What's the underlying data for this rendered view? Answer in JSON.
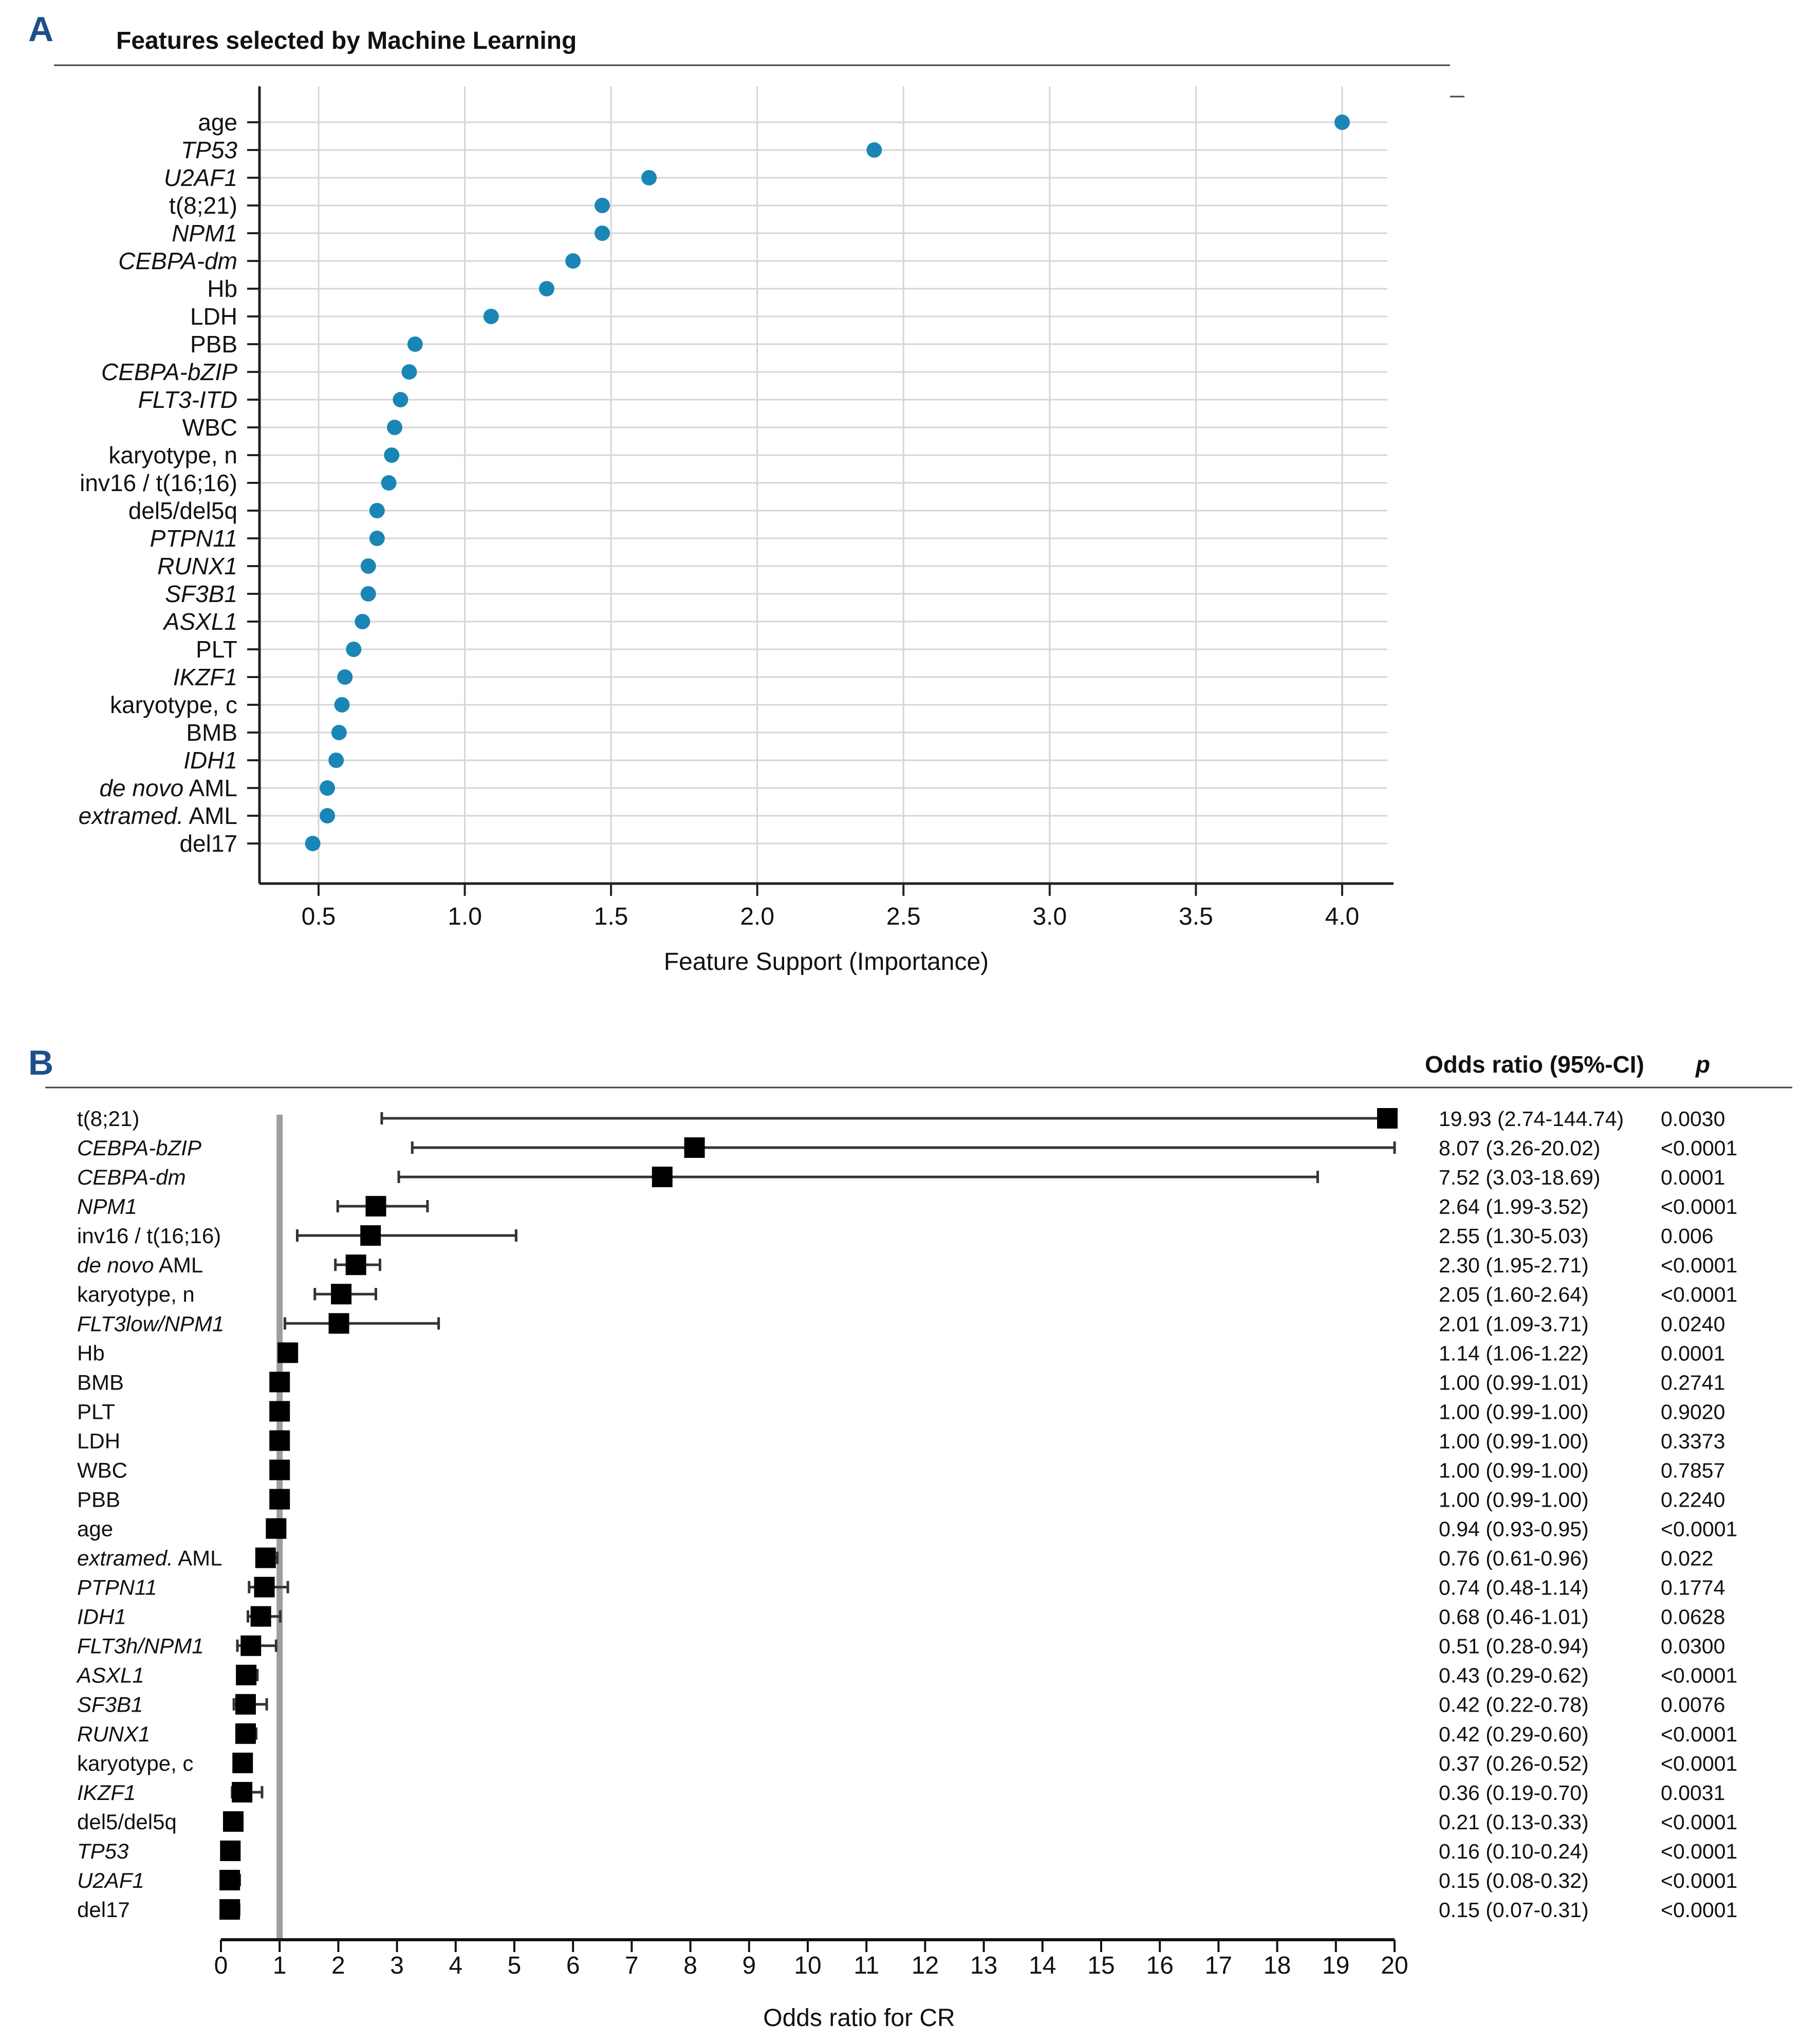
{
  "panels": {
    "a": {
      "letter": "A",
      "title": "Features selected by Machine Learning"
    },
    "b": {
      "letter": "B",
      "header_or": "Odds ratio (95%-CI)",
      "header_p": "p"
    }
  },
  "chart_data": [
    {
      "type": "scatter",
      "title": "Features selected by Machine Learning",
      "xlabel": "Feature Support (Importance)",
      "ylabel": "",
      "xlim": [
        0.2,
        4.18
      ],
      "xticks": [
        0.5,
        1.0,
        1.5,
        2.0,
        2.5,
        3.0,
        3.5,
        4.0
      ],
      "xtick_labels": [
        "0.5",
        "1.0",
        "1.5",
        "2.0",
        "2.5",
        "3.0",
        "3.5",
        "4.0"
      ],
      "grid": true,
      "point_color": "#1a86b6",
      "features": [
        {
          "label": "age",
          "value": 4.0,
          "italic": false
        },
        {
          "label": "TP53",
          "value": 2.4,
          "italic": true
        },
        {
          "label": "U2AF1",
          "value": 1.63,
          "italic": true
        },
        {
          "label": "t(8;21)",
          "value": 1.47,
          "italic": false
        },
        {
          "label": "NPM1",
          "value": 1.47,
          "italic": true
        },
        {
          "label": "CEBPA-dm",
          "value": 1.37,
          "italic": true
        },
        {
          "label": "Hb",
          "value": 1.28,
          "italic": false
        },
        {
          "label": "LDH",
          "value": 1.09,
          "italic": false
        },
        {
          "label": "PBB",
          "value": 0.83,
          "italic": false
        },
        {
          "label": "CEBPA-bZIP",
          "value": 0.81,
          "italic": true
        },
        {
          "label": "FLT3-ITD",
          "value": 0.78,
          "italic": true
        },
        {
          "label": "WBC",
          "value": 0.76,
          "italic": false
        },
        {
          "label": "karyotype, n",
          "value": 0.75,
          "italic": false
        },
        {
          "label": "inv16 / t(16;16)",
          "value": 0.74,
          "italic": false
        },
        {
          "label": "del5/del5q",
          "value": 0.7,
          "italic": false
        },
        {
          "label": "PTPN11",
          "value": 0.7,
          "italic": true
        },
        {
          "label": "RUNX1",
          "value": 0.67,
          "italic": true
        },
        {
          "label": "SF3B1",
          "value": 0.67,
          "italic": true
        },
        {
          "label": "ASXL1",
          "value": 0.65,
          "italic": true
        },
        {
          "label": "PLT",
          "value": 0.62,
          "italic": false
        },
        {
          "label": "IKZF1",
          "value": 0.59,
          "italic": true
        },
        {
          "label": "karyotype, c",
          "value": 0.58,
          "italic": false
        },
        {
          "label": "BMB",
          "value": 0.57,
          "italic": false
        },
        {
          "label": "IDH1",
          "value": 0.56,
          "italic": true
        },
        {
          "label": "de novo AML",
          "value": 0.53,
          "italic": false,
          "italic_part": "de novo",
          "plain_part": " AML"
        },
        {
          "label": "extramed. AML",
          "value": 0.53,
          "italic": false,
          "italic_part": "extramed.",
          "plain_part": " AML"
        },
        {
          "label": "del17",
          "value": 0.48,
          "italic": false
        }
      ]
    },
    {
      "type": "forest",
      "title": "",
      "xlabel": "Odds ratio for CR",
      "xlim": [
        0,
        20
      ],
      "reference_line": 1,
      "xticks": [
        0,
        1,
        2,
        3,
        4,
        5,
        6,
        7,
        8,
        9,
        10,
        11,
        12,
        13,
        14,
        15,
        16,
        17,
        18,
        19,
        20
      ],
      "xtick_labels": [
        "0",
        "1",
        "2",
        "3",
        "4",
        "5",
        "6",
        "7",
        "8",
        "9",
        "10",
        "11",
        "12",
        "13",
        "14",
        "15",
        "16",
        "17",
        "18",
        "19",
        "20"
      ],
      "table_headers": {
        "or": "Odds ratio (95%-CI)",
        "p": "p"
      },
      "rows": [
        {
          "label": "t(8;21)",
          "or": 19.93,
          "lo": 2.74,
          "hi": 144.74,
          "or_text": "19.93 (2.74-144.74)",
          "p": "0.0030",
          "italic": false
        },
        {
          "label": "CEBPA-bZIP",
          "or": 8.07,
          "lo": 3.26,
          "hi": 20.02,
          "or_text": "8.07 (3.26-20.02)",
          "p": "<0.0001",
          "italic": true
        },
        {
          "label": "CEBPA-dm",
          "or": 7.52,
          "lo": 3.03,
          "hi": 18.69,
          "or_text": "7.52 (3.03-18.69)",
          "p": "0.0001",
          "italic": true
        },
        {
          "label": "NPM1",
          "or": 2.64,
          "lo": 1.99,
          "hi": 3.52,
          "or_text": "2.64 (1.99-3.52)",
          "p": "<0.0001",
          "italic": true
        },
        {
          "label": "inv16 / t(16;16)",
          "or": 2.55,
          "lo": 1.3,
          "hi": 5.03,
          "or_text": "2.55 (1.30-5.03)",
          "p": "0.006",
          "italic": false
        },
        {
          "label": "de novo AML",
          "or": 2.3,
          "lo": 1.95,
          "hi": 2.71,
          "or_text": "2.30 (1.95-2.71)",
          "p": "<0.0001",
          "italic": false,
          "italic_part": "de novo",
          "plain_part": " AML"
        },
        {
          "label": "karyotype, n",
          "or": 2.05,
          "lo": 1.6,
          "hi": 2.64,
          "or_text": "2.05 (1.60-2.64)",
          "p": "<0.0001",
          "italic": false
        },
        {
          "label": "FLT3low/NPM1",
          "or": 2.01,
          "lo": 1.09,
          "hi": 3.71,
          "or_text": "2.01 (1.09-3.71)",
          "p": "0.0240",
          "italic": true
        },
        {
          "label": "Hb",
          "or": 1.14,
          "lo": 1.06,
          "hi": 1.22,
          "or_text": "1.14 (1.06-1.22)",
          "p": "0.0001",
          "italic": false
        },
        {
          "label": "BMB",
          "or": 1.0,
          "lo": 0.99,
          "hi": 1.01,
          "or_text": "1.00 (0.99-1.01)",
          "p": "0.2741",
          "italic": false
        },
        {
          "label": "PLT",
          "or": 1.0,
          "lo": 0.99,
          "hi": 1.0,
          "or_text": "1.00 (0.99-1.00)",
          "p": "0.9020",
          "italic": false
        },
        {
          "label": "LDH",
          "or": 1.0,
          "lo": 0.99,
          "hi": 1.0,
          "or_text": "1.00 (0.99-1.00)",
          "p": "0.3373",
          "italic": false
        },
        {
          "label": "WBC",
          "or": 1.0,
          "lo": 0.99,
          "hi": 1.0,
          "or_text": "1.00 (0.99-1.00)",
          "p": "0.7857",
          "italic": false
        },
        {
          "label": "PBB",
          "or": 1.0,
          "lo": 0.99,
          "hi": 1.0,
          "or_text": "1.00 (0.99-1.00)",
          "p": "0.2240",
          "italic": false
        },
        {
          "label": "age",
          "or": 0.94,
          "lo": 0.93,
          "hi": 0.95,
          "or_text": "0.94 (0.93-0.95)",
          "p": "<0.0001",
          "italic": false
        },
        {
          "label": "extramed. AML",
          "or": 0.76,
          "lo": 0.61,
          "hi": 0.96,
          "or_text": "0.76 (0.61-0.96)",
          "p": "0.022",
          "italic": false,
          "italic_part": "extramed.",
          "plain_part": " AML"
        },
        {
          "label": "PTPN11",
          "or": 0.74,
          "lo": 0.48,
          "hi": 1.14,
          "or_text": "0.74 (0.48-1.14)",
          "p": "0.1774",
          "italic": true
        },
        {
          "label": "IDH1",
          "or": 0.68,
          "lo": 0.46,
          "hi": 1.01,
          "or_text": "0.68 (0.46-1.01)",
          "p": "0.0628",
          "italic": true
        },
        {
          "label": "FLT3h/NPM1",
          "or": 0.51,
          "lo": 0.28,
          "hi": 0.94,
          "or_text": "0.51 (0.28-0.94)",
          "p": "0.0300",
          "italic": true
        },
        {
          "label": "ASXL1",
          "or": 0.43,
          "lo": 0.29,
          "hi": 0.62,
          "or_text": "0.43 (0.29-0.62)",
          "p": "<0.0001",
          "italic": true
        },
        {
          "label": "SF3B1",
          "or": 0.42,
          "lo": 0.22,
          "hi": 0.78,
          "or_text": "0.42 (0.22-0.78)",
          "p": "0.0076",
          "italic": true
        },
        {
          "label": "RUNX1",
          "or": 0.42,
          "lo": 0.29,
          "hi": 0.6,
          "or_text": "0.42 (0.29-0.60)",
          "p": "<0.0001",
          "italic": true
        },
        {
          "label": "karyotype, c",
          "or": 0.37,
          "lo": 0.26,
          "hi": 0.52,
          "or_text": "0.37 (0.26-0.52)",
          "p": "<0.0001",
          "italic": false
        },
        {
          "label": "IKZF1",
          "or": 0.36,
          "lo": 0.19,
          "hi": 0.7,
          "or_text": "0.36 (0.19-0.70)",
          "p": "0.0031",
          "italic": true
        },
        {
          "label": "del5/del5q",
          "or": 0.21,
          "lo": 0.13,
          "hi": 0.33,
          "or_text": "0.21 (0.13-0.33)",
          "p": "<0.0001",
          "italic": false
        },
        {
          "label": "TP53",
          "or": 0.16,
          "lo": 0.1,
          "hi": 0.24,
          "or_text": "0.16 (0.10-0.24)",
          "p": "<0.0001",
          "italic": true
        },
        {
          "label": "U2AF1",
          "or": 0.15,
          "lo": 0.08,
          "hi": 0.32,
          "or_text": "0.15 (0.08-0.32)",
          "p": "<0.0001",
          "italic": true
        },
        {
          "label": "del17",
          "or": 0.15,
          "lo": 0.07,
          "hi": 0.31,
          "or_text": "0.15 (0.07-0.31)",
          "p": "<0.0001",
          "italic": false
        }
      ]
    }
  ]
}
